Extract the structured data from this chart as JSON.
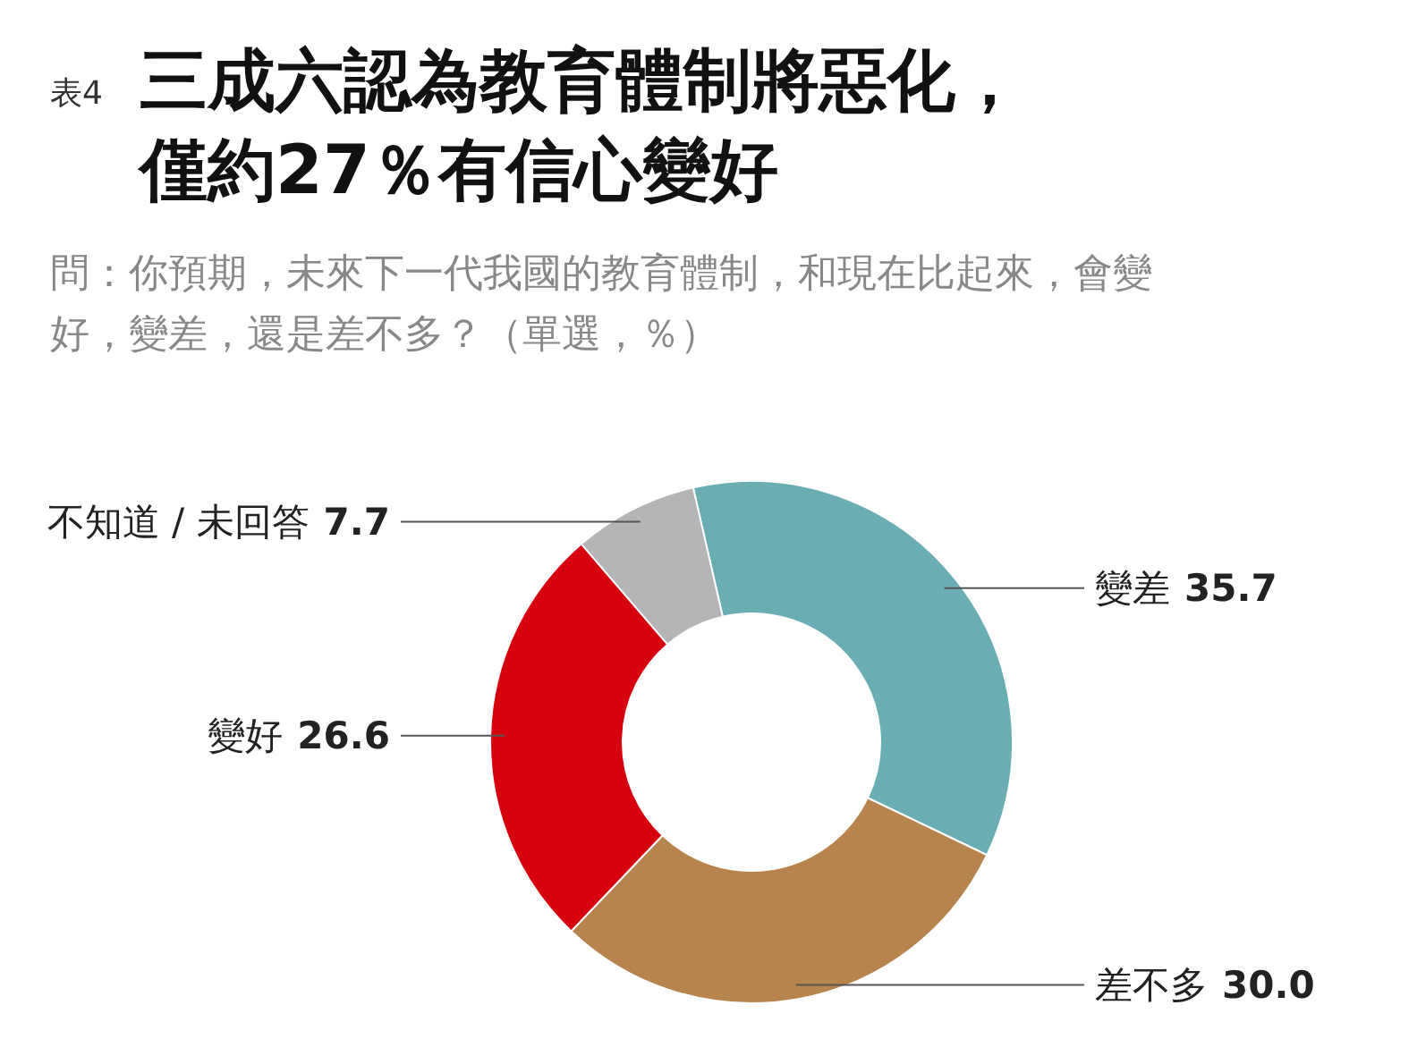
{
  "chart_data": {
    "type": "donut",
    "title": "三成六認為教育體制將惡化，僅約27％有信心變好",
    "subtitle": "問：你預期，未來下一代我國的教育體制，和現在比起來，會變好，變差，還是差不多？（單選，％）",
    "annotations": [
      "表4"
    ],
    "categories": [
      "變差",
      "差不多",
      "變好",
      "不知道 / 未回答"
    ],
    "values": [
      35.7,
      30.0,
      26.6,
      7.7
    ],
    "value_labels": [
      "35.7",
      "30.0",
      "26.6",
      "7.7"
    ],
    "colors": [
      "#6aaeb3",
      "#b8844e",
      "#d7000f",
      "#b5b5b7"
    ]
  }
}
